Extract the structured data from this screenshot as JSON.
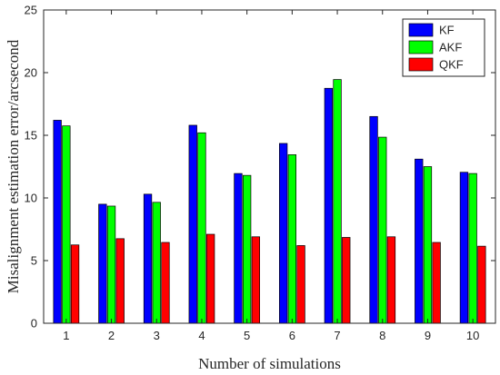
{
  "chart_data": {
    "type": "bar",
    "title": "",
    "xlabel": "Number of simulations",
    "ylabel": "Misalignment estimation error/arcsecond",
    "categories": [
      "1",
      "2",
      "3",
      "4",
      "5",
      "6",
      "7",
      "8",
      "9",
      "10"
    ],
    "ylim": [
      0,
      25
    ],
    "yticks": [
      0,
      5,
      10,
      15,
      20,
      25
    ],
    "grid": false,
    "legend_position": "top-right",
    "series": [
      {
        "name": "KF",
        "color": "#0000ff",
        "values": [
          16.2,
          9.5,
          10.3,
          15.8,
          11.95,
          14.35,
          18.75,
          16.5,
          13.1,
          12.05
        ]
      },
      {
        "name": "AKF",
        "color": "#00ff00",
        "values": [
          15.75,
          9.35,
          9.65,
          15.2,
          11.8,
          13.45,
          19.45,
          14.85,
          12.5,
          11.95
        ]
      },
      {
        "name": "QKF",
        "color": "#ff0000",
        "values": [
          6.25,
          6.75,
          6.45,
          7.1,
          6.9,
          6.2,
          6.85,
          6.9,
          6.45,
          6.15
        ]
      }
    ]
  }
}
